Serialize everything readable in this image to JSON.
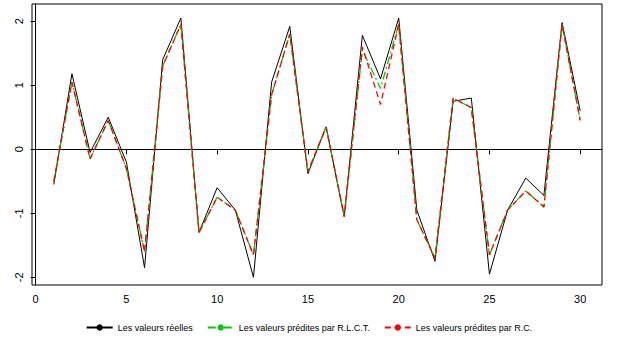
{
  "chart_data": {
    "type": "line",
    "x": [
      1,
      2,
      3,
      4,
      5,
      6,
      7,
      8,
      9,
      10,
      11,
      12,
      13,
      14,
      15,
      16,
      17,
      18,
      19,
      20,
      21,
      22,
      23,
      24,
      25,
      26,
      27,
      28,
      29,
      30
    ],
    "series": [
      {
        "name": "Les valeurs réelles",
        "color": "#000000",
        "line_style": "solid",
        "values": [
          -0.55,
          1.18,
          -0.05,
          0.5,
          -0.2,
          -1.85,
          1.4,
          2.05,
          -1.3,
          -0.6,
          -0.95,
          -2.0,
          1.05,
          1.92,
          -0.38,
          0.35,
          -1.05,
          1.78,
          1.1,
          2.05,
          -0.95,
          -1.75,
          0.75,
          0.8,
          -1.95,
          -0.95,
          -0.45,
          -0.72,
          1.98,
          0.6
        ]
      },
      {
        "name": "Les valeurs prédites par R.L.C.T.",
        "color": "#00cc00",
        "line_style": "dashdot",
        "values": [
          -0.5,
          1.05,
          -0.15,
          0.45,
          -0.3,
          -1.6,
          1.3,
          1.95,
          -1.3,
          -0.75,
          -0.95,
          -1.65,
          0.85,
          1.8,
          -0.35,
          0.35,
          -1.05,
          1.55,
          0.95,
          1.95,
          -1.1,
          -1.7,
          0.8,
          0.65,
          -1.65,
          -0.95,
          -0.65,
          -0.9,
          1.95,
          0.45
        ]
      },
      {
        "name": "Les valeurs prédites par R.C.",
        "color": "#ff0000",
        "line_style": "dashed",
        "values": [
          -0.5,
          1.05,
          -0.15,
          0.45,
          -0.3,
          -1.6,
          1.3,
          1.95,
          -1.3,
          -0.75,
          -0.95,
          -1.65,
          0.85,
          1.8,
          -0.35,
          0.35,
          -1.05,
          1.6,
          0.7,
          1.95,
          -1.1,
          -1.7,
          0.8,
          0.65,
          -1.65,
          -0.95,
          -0.65,
          -0.9,
          1.95,
          0.45
        ]
      }
    ],
    "xlim": [
      -0.2,
      31.2
    ],
    "xticks": [
      0,
      5,
      10,
      15,
      20,
      25,
      30
    ],
    "ylim": [
      -2.12,
      2.27
    ],
    "yticks": [
      -2,
      -1,
      0,
      1,
      2
    ],
    "grid": false,
    "legend": "bottom",
    "marker": "none"
  }
}
